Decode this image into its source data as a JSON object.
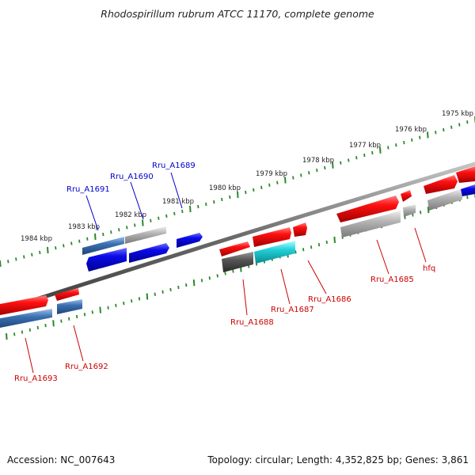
{
  "title": "Rhodospirillum rubrum ATCC 11170, complete genome",
  "footer": {
    "accession": "Accession: NC_007643",
    "summary": "Topology: circular; Length: 4,352,825 bp; Genes: 3,861"
  },
  "colors": {
    "forward_gene": "#e8101a",
    "reverse_gene": "#2030e0",
    "gray_feature": "#a8a8a8",
    "dark_feature": "#555555",
    "cyan_feature": "#20c8d0",
    "steel_feature": "#3b70b0",
    "backbone": "#777777",
    "tick": "#2a8a2a",
    "red_label": "#cc0000",
    "blue_label": "#0000cc"
  },
  "ruler": [
    {
      "label": "1975 kbp"
    },
    {
      "label": "1976 kbp"
    },
    {
      "label": "1977 kbp"
    },
    {
      "label": "1978 kbp"
    },
    {
      "label": "1979 kbp"
    },
    {
      "label": "1980 kbp"
    },
    {
      "label": "1981 kbp"
    },
    {
      "label": "1982 kbp"
    },
    {
      "label": "1983 kbp"
    },
    {
      "label": "1984 kbp"
    }
  ],
  "gene_labels": [
    {
      "label": "Rru_A1691",
      "color": "blue"
    },
    {
      "label": "Rru_A1690",
      "color": "blue"
    },
    {
      "label": "Rru_A1689",
      "color": "blue"
    },
    {
      "label": "Rru_A1693",
      "color": "red"
    },
    {
      "label": "Rru_A1692",
      "color": "red"
    },
    {
      "label": "Rru_A1688",
      "color": "red"
    },
    {
      "label": "Rru_A1687",
      "color": "red"
    },
    {
      "label": "Rru_A1686",
      "color": "red"
    },
    {
      "label": "Rru_A1685",
      "color": "red"
    },
    {
      "label": "hfq",
      "color": "red"
    }
  ]
}
